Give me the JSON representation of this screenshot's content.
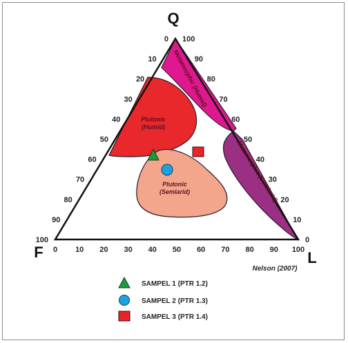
{
  "diagram": {
    "apices": {
      "top": "Q",
      "left": "F",
      "right": "L"
    },
    "ticks": [
      "0",
      "10",
      "20",
      "30",
      "40",
      "50",
      "60",
      "70",
      "80",
      "90",
      "100"
    ],
    "fields": [
      {
        "label": [
          "Metamorphic (Humid)"
        ],
        "color": "#e0188f"
      },
      {
        "label": [
          "Metamorphic (Semiarid)"
        ],
        "color": "#9b2f84"
      },
      {
        "label": [
          "Plutonic",
          "(Humid)"
        ],
        "color": "#e8282b"
      },
      {
        "label": [
          "Plutonic",
          "(Semiarid)"
        ],
        "color": "#f4a68c"
      }
    ],
    "credit": "Nelson (2007)"
  },
  "samples": [
    {
      "label": "SAMPEL 1 (PTR 1.2)",
      "marker": "triangle",
      "color": "#1f9a3a"
    },
    {
      "label": "SAMPEL 2 (PTR 1.3)",
      "marker": "circle",
      "color": "#1aa3e0"
    },
    {
      "label": "SAMPEL 3 (PTR 1.4)",
      "marker": "square",
      "color": "#e8232a"
    }
  ]
}
